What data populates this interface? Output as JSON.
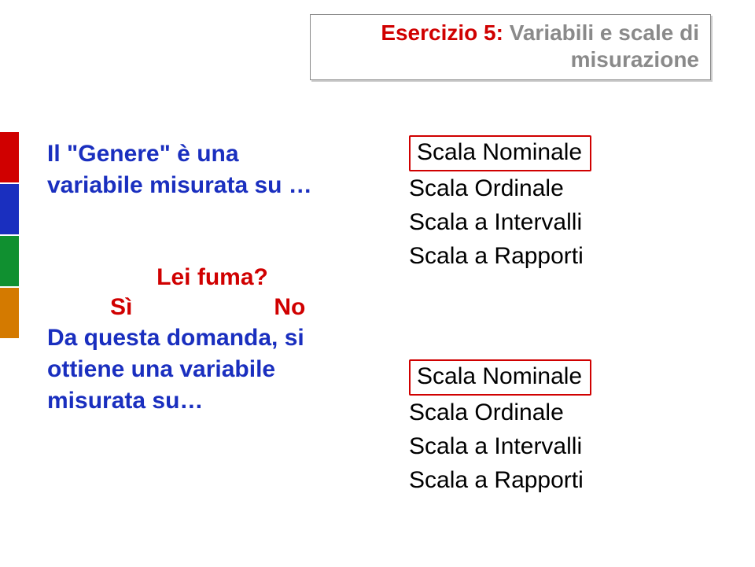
{
  "title": {
    "exercise_label": "Esercizio 5:",
    "rest_line1": " Variabili e scale di",
    "line2": "misurazione"
  },
  "colors": {
    "red": "#d00000",
    "blue": "#1a2fbf",
    "green": "#109030",
    "orange": "#d47a00",
    "black": "#000000",
    "grey": "#8a8a8a"
  },
  "left": {
    "q1_line1": "Il \"Genere\" è una",
    "q1_line2": "variabile misurata su …",
    "q2_prompt": "Lei fuma?",
    "q2_yes": "Sì",
    "q2_no": "No",
    "q2_rest_l1": "Da questa domanda, si",
    "q2_rest_l2": "ottiene una variabile",
    "q2_rest_l3": "misurata su…"
  },
  "right": {
    "list1": {
      "answer": "Scala Nominale",
      "opt2": "Scala Ordinale",
      "opt3": "Scala a Intervalli",
      "opt4": "Scala a Rapporti"
    },
    "list2": {
      "answer": "Scala Nominale",
      "opt2": "Scala Ordinale",
      "opt3": "Scala a Intervalli",
      "opt4": "Scala a Rapporti"
    }
  }
}
